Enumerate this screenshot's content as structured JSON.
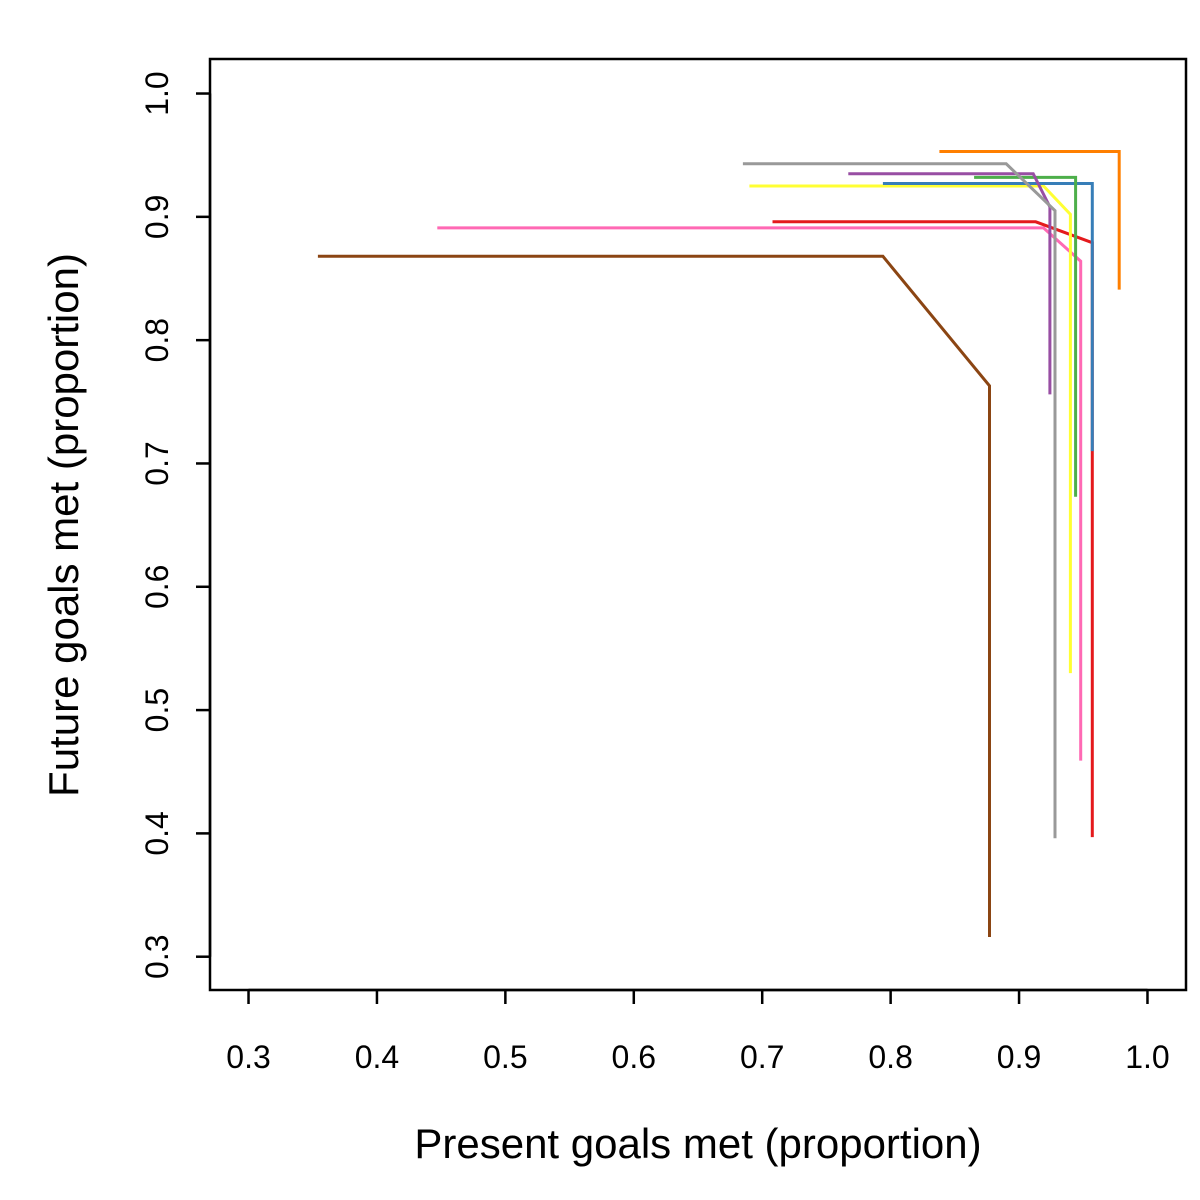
{
  "chart_data": {
    "type": "line",
    "xlabel": "Present goals met (proportion)",
    "ylabel": "Future goals met (proportion)",
    "xlim": [
      0.27,
      1.03
    ],
    "ylim": [
      0.273,
      1.028
    ],
    "xticks": [
      0.3,
      0.4,
      0.5,
      0.6,
      0.7,
      0.8,
      0.9,
      1.0
    ],
    "yticks": [
      0.3,
      0.4,
      0.5,
      0.6,
      0.7,
      0.8,
      0.9,
      1.0
    ],
    "xtick_labels": [
      "0.3",
      "0.4",
      "0.5",
      "0.6",
      "0.7",
      "0.8",
      "0.9",
      "1.0"
    ],
    "ytick_labels": [
      "0.3",
      "0.4",
      "0.5",
      "0.6",
      "0.7",
      "0.8",
      "0.9",
      "1.0"
    ],
    "grid": false,
    "series": [
      {
        "color": "#8B4513",
        "points": [
          [
            0.354,
            0.868
          ],
          [
            0.794,
            0.868
          ],
          [
            0.877,
            0.763
          ],
          [
            0.877,
            0.316
          ]
        ]
      },
      {
        "color": "#FF69B4",
        "points": [
          [
            0.447,
            0.891
          ],
          [
            0.919,
            0.891
          ],
          [
            0.948,
            0.864
          ],
          [
            0.948,
            0.459
          ]
        ]
      },
      {
        "color": "#E41A1C",
        "points": [
          [
            0.708,
            0.896
          ],
          [
            0.913,
            0.896
          ],
          [
            0.957,
            0.879
          ],
          [
            0.957,
            0.397
          ]
        ]
      },
      {
        "color": "#FFFF33",
        "points": [
          [
            0.69,
            0.925
          ],
          [
            0.919,
            0.925
          ],
          [
            0.94,
            0.902
          ],
          [
            0.94,
            0.53
          ]
        ]
      },
      {
        "color": "#377EB8",
        "points": [
          [
            0.794,
            0.927
          ],
          [
            0.957,
            0.927
          ],
          [
            0.957,
            0.71
          ]
        ]
      },
      {
        "color": "#4DAF4A",
        "points": [
          [
            0.865,
            0.932
          ],
          [
            0.944,
            0.932
          ],
          [
            0.944,
            0.673
          ]
        ]
      },
      {
        "color": "#984EA3",
        "points": [
          [
            0.767,
            0.935
          ],
          [
            0.911,
            0.935
          ],
          [
            0.924,
            0.908
          ],
          [
            0.924,
            0.756
          ]
        ]
      },
      {
        "color": "#999999",
        "points": [
          [
            0.685,
            0.943
          ],
          [
            0.89,
            0.943
          ],
          [
            0.928,
            0.905
          ],
          [
            0.928,
            0.396
          ]
        ]
      },
      {
        "color": "#FF7F00",
        "points": [
          [
            0.838,
            0.953
          ],
          [
            0.978,
            0.953
          ],
          [
            0.978,
            0.841
          ]
        ]
      }
    ]
  }
}
